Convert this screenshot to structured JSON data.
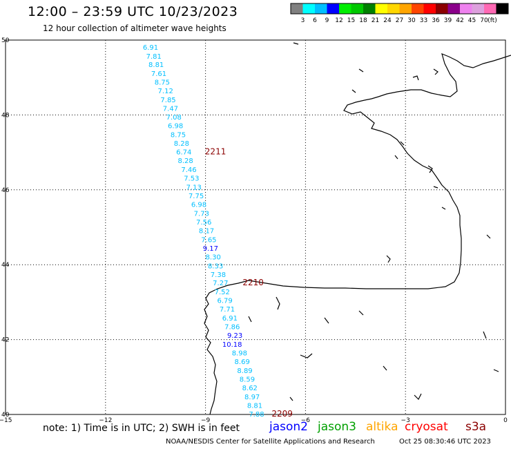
{
  "header": {
    "title": "12:00 – 23:59 UTC 10/23/2023",
    "subtitle": "12 hour collection of altimeter wave heights"
  },
  "colorbar": {
    "ticks": [
      "3",
      "6",
      "9",
      "12",
      "15",
      "18",
      "21",
      "24",
      "27",
      "30",
      "33",
      "36",
      "39",
      "42",
      "45",
      "70"
    ],
    "unit": "(ft)",
    "colors": [
      "#808080",
      "#00ffff",
      "#00bfff",
      "#0000ff",
      "#00ee00",
      "#00c800",
      "#008000",
      "#ffff00",
      "#ffd700",
      "#ffa500",
      "#ff4500",
      "#ff0000",
      "#8b0000",
      "#8b008b",
      "#ee82ee",
      "#dda0dd",
      "#ff69b4",
      "#000000"
    ]
  },
  "map": {
    "lat_range": [
      40,
      50
    ],
    "lon_range": [
      -15,
      0
    ],
    "lat_labels": [
      "50",
      "48",
      "46",
      "44",
      "42",
      "40"
    ],
    "lon_labels": [
      "−15",
      "−12",
      "−9",
      "−6",
      "−3",
      "0"
    ],
    "wave_heights": [
      {
        "value": "6.91",
        "lat": 49.82,
        "lon": -10.65,
        "color": "#00bfff"
      },
      {
        "value": "7.81",
        "lat": 49.58,
        "lon": -10.55,
        "color": "#00bfff"
      },
      {
        "value": "8.81",
        "lat": 49.35,
        "lon": -10.48,
        "color": "#00bfff"
      },
      {
        "value": "7.61",
        "lat": 49.11,
        "lon": -10.4,
        "color": "#00bfff"
      },
      {
        "value": "8.75",
        "lat": 48.88,
        "lon": -10.3,
        "color": "#00bfff"
      },
      {
        "value": "7.12",
        "lat": 48.65,
        "lon": -10.2,
        "color": "#00bfff"
      },
      {
        "value": "7.85",
        "lat": 48.41,
        "lon": -10.12,
        "color": "#00bfff"
      },
      {
        "value": "7.47",
        "lat": 48.18,
        "lon": -10.05,
        "color": "#00bfff"
      },
      {
        "value": "7.08",
        "lat": 47.95,
        "lon": -9.95,
        "color": "#00bfff"
      },
      {
        "value": "6.98",
        "lat": 47.72,
        "lon": -9.9,
        "color": "#00bfff"
      },
      {
        "value": "8.75",
        "lat": 47.48,
        "lon": -9.82,
        "color": "#00bfff"
      },
      {
        "value": "8.28",
        "lat": 47.25,
        "lon": -9.72,
        "color": "#00bfff"
      },
      {
        "value": "6.74",
        "lat": 47.02,
        "lon": -9.65,
        "color": "#00bfff"
      },
      {
        "value": "8.28",
        "lat": 46.79,
        "lon": -9.6,
        "color": "#00bfff"
      },
      {
        "value": "7.46",
        "lat": 46.55,
        "lon": -9.5,
        "color": "#00bfff"
      },
      {
        "value": "7.53",
        "lat": 46.32,
        "lon": -9.42,
        "color": "#00bfff"
      },
      {
        "value": "7.13",
        "lat": 46.08,
        "lon": -9.35,
        "color": "#00bfff"
      },
      {
        "value": "7.75",
        "lat": 45.85,
        "lon": -9.28,
        "color": "#00bfff"
      },
      {
        "value": "6.98",
        "lat": 45.62,
        "lon": -9.2,
        "color": "#00bfff"
      },
      {
        "value": "7.73",
        "lat": 45.38,
        "lon": -9.12,
        "color": "#00bfff"
      },
      {
        "value": "7.56",
        "lat": 45.15,
        "lon": -9.05,
        "color": "#00bfff"
      },
      {
        "value": "8.17",
        "lat": 44.92,
        "lon": -8.97,
        "color": "#00bfff"
      },
      {
        "value": "7.65",
        "lat": 44.68,
        "lon": -8.9,
        "color": "#00bfff"
      },
      {
        "value": "9.17",
        "lat": 44.45,
        "lon": -8.85,
        "color": "#0000ff"
      },
      {
        "value": "8.30",
        "lat": 44.22,
        "lon": -8.77,
        "color": "#00bfff"
      },
      {
        "value": "8.33",
        "lat": 43.98,
        "lon": -8.7,
        "color": "#00bfff"
      },
      {
        "value": "7.38",
        "lat": 43.75,
        "lon": -8.62,
        "color": "#00bfff"
      },
      {
        "value": "7.27",
        "lat": 43.52,
        "lon": -8.55,
        "color": "#00bfff"
      },
      {
        "value": "7.52",
        "lat": 43.28,
        "lon": -8.5,
        "color": "#00bfff"
      },
      {
        "value": "6.79",
        "lat": 43.05,
        "lon": -8.42,
        "color": "#00bfff"
      },
      {
        "value": "7.71",
        "lat": 42.82,
        "lon": -8.35,
        "color": "#00bfff"
      },
      {
        "value": "6.91",
        "lat": 42.58,
        "lon": -8.27,
        "color": "#00bfff"
      },
      {
        "value": "7.86",
        "lat": 42.35,
        "lon": -8.2,
        "color": "#00bfff"
      },
      {
        "value": "9.23",
        "lat": 42.12,
        "lon": -8.12,
        "color": "#0000ff"
      },
      {
        "value": "10.18",
        "lat": 41.88,
        "lon": -8.2,
        "color": "#0000ff"
      },
      {
        "value": "8.98",
        "lat": 41.65,
        "lon": -7.98,
        "color": "#00bfff"
      },
      {
        "value": "8.69",
        "lat": 41.42,
        "lon": -7.9,
        "color": "#00bfff"
      },
      {
        "value": "8.89",
        "lat": 41.18,
        "lon": -7.82,
        "color": "#00bfff"
      },
      {
        "value": "8.59",
        "lat": 40.95,
        "lon": -7.75,
        "color": "#00bfff"
      },
      {
        "value": "8.62",
        "lat": 40.72,
        "lon": -7.67,
        "color": "#00bfff"
      },
      {
        "value": "8.97",
        "lat": 40.48,
        "lon": -7.6,
        "color": "#00bfff"
      },
      {
        "value": "8.81",
        "lat": 40.25,
        "lon": -7.52,
        "color": "#00bfff"
      },
      {
        "value": "7.88",
        "lat": 40.02,
        "lon": -7.47,
        "color": "#00bfff"
      }
    ],
    "time_labels": [
      {
        "value": "2211",
        "lat": 47.02,
        "lon": -8.7
      },
      {
        "value": "2210",
        "lat": 43.52,
        "lon": -7.57
      },
      {
        "value": "2209",
        "lat": 40.02,
        "lon": -6.7
      }
    ]
  },
  "note": "note:  1) Time is in UTC; 2) SWH is in feet",
  "legend": [
    {
      "name": "jason2",
      "color": "#0000ff"
    },
    {
      "name": "jason3",
      "color": "#00a000"
    },
    {
      "name": "altika",
      "color": "#ffa500"
    },
    {
      "name": "cryosat",
      "color": "#ff0000"
    },
    {
      "name": "s3a",
      "color": "#8b0000"
    }
  ],
  "footer": {
    "credit": "NOAA/NESDIS Center for Satellite Applications and Research",
    "timestamp": "Oct 25 08:30:46 UTC 2023"
  }
}
